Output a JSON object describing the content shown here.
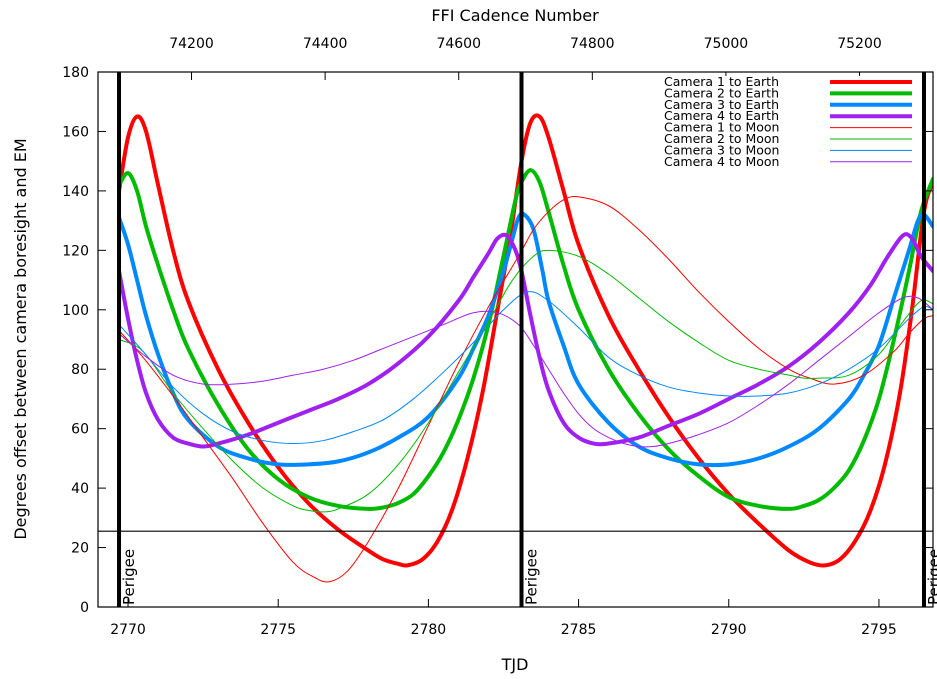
{
  "chart_data": {
    "type": "line",
    "xlabel": "TJD",
    "ylabel": "Degrees offset between camera boresight and EM",
    "x2label": "FFI Cadence Number",
    "xlim": [
      2769,
      2796.8
    ],
    "ylim": [
      0,
      180
    ],
    "x2lim": [
      74060,
      75310
    ],
    "xticks": [
      2770,
      2775,
      2780,
      2785,
      2790,
      2795
    ],
    "yticks": [
      0,
      20,
      40,
      60,
      80,
      100,
      120,
      140,
      160,
      180
    ],
    "x2ticks": [
      74200,
      74400,
      74600,
      74800,
      75000,
      75200
    ],
    "grid": false,
    "legend_position": "top-right",
    "hline": 25.5,
    "perigees": [
      {
        "x": 2769.7,
        "label": "Perigee"
      },
      {
        "x": 2783.1,
        "label": "Perigee"
      },
      {
        "x": 2796.5,
        "label": "Perigee"
      }
    ],
    "series": [
      {
        "name": "Camera 1 to Earth",
        "color": "#ff0000",
        "width": 4,
        "x": [
          2769.7,
          2770.0,
          2770.3,
          2770.6,
          2771.0,
          2771.5,
          2772.0,
          2773.0,
          2774.0,
          2775.0,
          2776.0,
          2777.0,
          2778.0,
          2778.5,
          2779.0,
          2779.3,
          2779.8,
          2780.3,
          2780.8,
          2781.3,
          2781.8,
          2782.3,
          2782.7,
          2783.1,
          2783.4,
          2783.7,
          2784.0,
          2784.5,
          2785.0,
          2786.0,
          2787.0,
          2788.0,
          2789.0,
          2790.0,
          2791.0,
          2792.0,
          2792.7,
          2793.2,
          2793.7,
          2794.2,
          2794.7,
          2795.2,
          2795.7,
          2796.1,
          2796.5,
          2796.8
        ],
        "y": [
          140,
          158,
          165,
          160,
          142,
          120,
          103,
          80,
          62,
          47,
          35,
          26,
          19,
          16,
          14.5,
          14,
          16,
          22,
          33,
          50,
          72,
          100,
          123,
          150,
          163,
          165,
          158,
          140,
          122,
          98,
          80,
          64,
          50,
          38,
          28,
          19,
          15,
          14,
          16,
          22,
          32,
          48,
          72,
          100,
          133,
          143
        ]
      },
      {
        "name": "Camera 2 to Earth",
        "color": "#00bb00",
        "width": 4,
        "x": [
          2769.7,
          2770.0,
          2770.3,
          2770.6,
          2771.0,
          2771.5,
          2772.0,
          2773.0,
          2774.0,
          2775.0,
          2776.0,
          2777.0,
          2778.0,
          2778.5,
          2779.0,
          2779.5,
          2780.0,
          2780.5,
          2781.0,
          2781.5,
          2782.0,
          2782.5,
          2782.9,
          2783.1,
          2783.4,
          2783.7,
          2784.0,
          2784.5,
          2785.0,
          2786.0,
          2787.0,
          2788.0,
          2789.0,
          2790.0,
          2791.0,
          2792.0,
          2792.5,
          2793.0,
          2793.5,
          2794.0,
          2794.5,
          2795.0,
          2795.5,
          2796.0,
          2796.4,
          2796.8
        ],
        "y": [
          142,
          146,
          140,
          128,
          115,
          100,
          87,
          68,
          53,
          43,
          37,
          34,
          33,
          33.5,
          35,
          38,
          44,
          52,
          63,
          77,
          95,
          118,
          137,
          143,
          147,
          143,
          133,
          115,
          100,
          80,
          65,
          53,
          44,
          37,
          34,
          33,
          34,
          36,
          40,
          46,
          56,
          70,
          90,
          113,
          133,
          144
        ]
      },
      {
        "name": "Camera 3 to Earth",
        "color": "#0088ff",
        "width": 4,
        "x": [
          2769.7,
          2770.0,
          2770.3,
          2770.6,
          2771.0,
          2771.5,
          2772.0,
          2773.0,
          2774.0,
          2775.0,
          2776.0,
          2777.0,
          2778.0,
          2779.0,
          2780.0,
          2781.0,
          2781.5,
          2782.0,
          2782.5,
          2782.8,
          2783.0,
          2783.2,
          2783.5,
          2783.8,
          2784.0,
          2784.5,
          2785.0,
          2786.0,
          2787.0,
          2788.0,
          2789.0,
          2790.0,
          2791.0,
          2792.0,
          2793.0,
          2794.0,
          2794.5,
          2795.0,
          2795.5,
          2796.0,
          2796.3,
          2796.5,
          2796.8
        ],
        "y": [
          131,
          122,
          110,
          98,
          85,
          72,
          63,
          54,
          50,
          48,
          48,
          49,
          52,
          57,
          64,
          77,
          87,
          98,
          113,
          124,
          131,
          132,
          127,
          113,
          103,
          88,
          75,
          62,
          54,
          50,
          48,
          48,
          50,
          54,
          60,
          70,
          78,
          88,
          104,
          120,
          130,
          132,
          128
        ]
      },
      {
        "name": "Camera 4 to Earth",
        "color": "#a020f0",
        "width": 4,
        "x": [
          2769.7,
          2770.0,
          2770.3,
          2770.6,
          2771.0,
          2771.5,
          2772.0,
          2772.5,
          2773.0,
          2774.0,
          2775.0,
          2776.0,
          2777.0,
          2778.0,
          2779.0,
          2780.0,
          2781.0,
          2781.5,
          2782.0,
          2782.3,
          2782.6,
          2782.9,
          2783.1,
          2783.4,
          2783.7,
          2784.0,
          2784.5,
          2785.0,
          2785.5,
          2786.0,
          2787.0,
          2788.0,
          2789.0,
          2790.0,
          2791.0,
          2792.0,
          2793.0,
          2794.0,
          2794.7,
          2795.3,
          2795.8,
          2796.1,
          2796.4,
          2796.8
        ],
        "y": [
          113,
          97,
          83,
          72,
          63,
          57,
          55,
          54,
          55,
          58,
          62,
          66,
          70,
          75,
          82,
          91,
          103,
          111,
          119,
          124,
          125,
          120,
          113,
          98,
          84,
          73,
          62,
          57,
          55,
          55,
          57,
          61,
          65,
          70,
          75,
          81,
          89,
          99,
          108,
          118,
          125,
          124,
          118,
          113
        ]
      },
      {
        "name": "Camera 1 to Moon",
        "color": "#ff0000",
        "width": 1,
        "x": [
          2769.7,
          2770.5,
          2771.5,
          2772.5,
          2773.5,
          2774.5,
          2775.5,
          2776.2,
          2776.7,
          2777.3,
          2778.0,
          2779.0,
          2780.0,
          2781.0,
          2782.0,
          2783.0,
          2783.5,
          2784.0,
          2784.5,
          2785.0,
          2786.0,
          2787.0,
          2788.0,
          2789.0,
          2790.0,
          2791.0,
          2792.0,
          2792.7,
          2793.5,
          2794.5,
          2795.5,
          2796.0,
          2796.5,
          2796.8
        ],
        "y": [
          93,
          84,
          71,
          57,
          43,
          28,
          15,
          10,
          8.5,
          12,
          22,
          40,
          61,
          82,
          101,
          118,
          127,
          133,
          137,
          138,
          135,
          127,
          117,
          106,
          96,
          87,
          80,
          77,
          75,
          78,
          86,
          92,
          97,
          98
        ]
      },
      {
        "name": "Camera 2 to Moon",
        "color": "#00bb00",
        "width": 1,
        "x": [
          2769.7,
          2770.5,
          2771.5,
          2772.5,
          2773.5,
          2774.5,
          2775.5,
          2776.0,
          2776.5,
          2777.0,
          2778.0,
          2779.0,
          2780.0,
          2781.0,
          2782.0,
          2782.8,
          2783.5,
          2784.0,
          2785.0,
          2786.0,
          2787.0,
          2788.0,
          2789.0,
          2790.0,
          2791.0,
          2792.0,
          2792.5,
          2793.0,
          2794.0,
          2795.0,
          2795.8,
          2796.4,
          2796.8
        ],
        "y": [
          90,
          86,
          72,
          60,
          49,
          40,
          34,
          32.5,
          32,
          33,
          38,
          48,
          62,
          79,
          96,
          110,
          118,
          120,
          118,
          112,
          104,
          96,
          89,
          83,
          80,
          78,
          77,
          77,
          78,
          85,
          96,
          103,
          102
        ]
      },
      {
        "name": "Camera 3 to Moon",
        "color": "#0088ff",
        "width": 1,
        "x": [
          2769.7,
          2770.5,
          2771.5,
          2772.5,
          2773.5,
          2774.5,
          2775.5,
          2776.5,
          2777.5,
          2778.5,
          2779.5,
          2780.5,
          2781.5,
          2782.5,
          2783.3,
          2784.0,
          2785.0,
          2786.0,
          2787.0,
          2788.0,
          2789.0,
          2790.0,
          2791.0,
          2792.0,
          2793.0,
          2794.0,
          2795.0,
          2796.0,
          2796.5,
          2796.8
        ],
        "y": [
          95,
          86,
          74,
          65,
          59,
          56,
          55,
          56,
          59,
          63,
          70,
          79,
          89,
          100,
          106,
          103,
          94,
          84,
          78,
          74,
          72,
          71,
          71,
          72,
          75,
          80,
          87,
          97,
          101,
          100
        ]
      },
      {
        "name": "Camera 4 to Moon",
        "color": "#a020f0",
        "width": 1,
        "x": [
          2769.7,
          2770.5,
          2771.5,
          2772.5,
          2773.5,
          2774.5,
          2775.5,
          2776.5,
          2777.5,
          2778.5,
          2779.5,
          2780.5,
          2781.5,
          2782.3,
          2783.0,
          2783.5,
          2784.0,
          2784.5,
          2785.0,
          2785.5,
          2786.0,
          2786.5,
          2787.0,
          2787.5,
          2788.0,
          2789.0,
          2790.0,
          2791.0,
          2792.0,
          2793.0,
          2794.0,
          2795.0,
          2795.8,
          2796.3,
          2796.8
        ],
        "y": [
          92,
          85,
          78,
          75,
          75,
          76,
          78,
          80,
          83,
          87,
          91,
          95,
          99,
          99,
          95,
          88,
          80,
          72,
          65,
          60,
          57,
          55,
          54,
          54,
          55,
          58,
          62,
          68,
          75,
          83,
          91,
          99,
          104,
          104,
          100
        ]
      }
    ]
  }
}
